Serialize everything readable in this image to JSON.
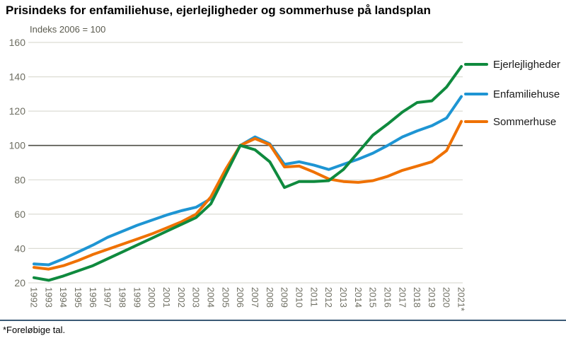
{
  "header": {
    "title": "Prisindeks for enfamiliehuse, ejerlejligheder og sommerhuse på landsplan",
    "subtitle": "Indeks 2006 = 100"
  },
  "chart_data": {
    "type": "line",
    "title": "Prisindeks for enfamiliehuse, ejerlejligheder og sommerhuse på landsplan",
    "subtitle": "Indeks 2006 = 100",
    "x": [
      "1992",
      "1993",
      "1994",
      "1995",
      "1996",
      "1997",
      "1998",
      "1999",
      "2000",
      "2001",
      "2002",
      "2003",
      "2004",
      "2005",
      "2006",
      "2007",
      "2008",
      "2009",
      "2010",
      "2011",
      "2012",
      "2013",
      "2014",
      "2015",
      "2016",
      "2017",
      "2018",
      "2019",
      "2020",
      "2021*"
    ],
    "series": [
      {
        "name": "Ejerlejligheder",
        "color": "#0f8a3e",
        "values": [
          23,
          21.5,
          24,
          27,
          30,
          34,
          38,
          42,
          46,
          50,
          54,
          58,
          66,
          83,
          100,
          97.5,
          90.5,
          75.5,
          79,
          79,
          79.5,
          86,
          96,
          106,
          112.5,
          119.5,
          125,
          126,
          134,
          146
        ]
      },
      {
        "name": "Enfamiliehuse",
        "color": "#1e95d3",
        "values": [
          31,
          30.5,
          34,
          38,
          42,
          46.5,
          50,
          53.5,
          56.5,
          59.5,
          62,
          64,
          69,
          84,
          100,
          105,
          101,
          89,
          90.5,
          88.5,
          86,
          89,
          92,
          95.5,
          100,
          105,
          108.5,
          111.5,
          116,
          128.5
        ]
      },
      {
        "name": "Sommerhuse",
        "color": "#ef7100",
        "values": [
          29,
          28,
          30,
          33,
          36.5,
          39.5,
          42.5,
          45.5,
          48.5,
          52,
          55.5,
          60,
          70,
          86,
          100,
          104,
          100.5,
          87.5,
          88,
          84.5,
          80.5,
          79,
          78.5,
          79.5,
          82,
          85.5,
          88,
          90.5,
          97,
          114
        ]
      }
    ],
    "ylim": [
      20,
      160
    ],
    "yticks": [
      160,
      140,
      120,
      100,
      80,
      60,
      40,
      20
    ],
    "baseline_value": 100,
    "grid": true,
    "legend_position": "right",
    "colors": {
      "gridline": "#dcdcd4",
      "baseline": "#4d4d45",
      "tick_text": "#6e6e62"
    }
  },
  "footer": {
    "note": "*Foreløbige tal."
  }
}
